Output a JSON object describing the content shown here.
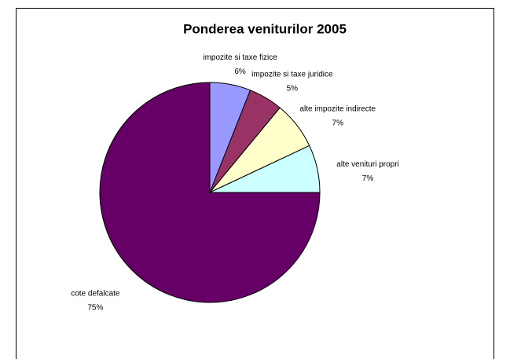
{
  "chart_data": {
    "type": "pie",
    "title": "Ponderea veniturilor 2005",
    "categories": [
      "impozite si taxe fizice",
      "impozite si taxe juridice",
      "alte impozite indirecte",
      "alte venituri propri",
      "cote defalcate"
    ],
    "values": [
      6,
      5,
      7,
      7,
      75
    ],
    "value_labels": [
      "6%",
      "5%",
      "7%",
      "7%",
      "75%"
    ],
    "colors": [
      "#9999ff",
      "#993366",
      "#ffffcc",
      "#ccffff",
      "#660066"
    ]
  }
}
